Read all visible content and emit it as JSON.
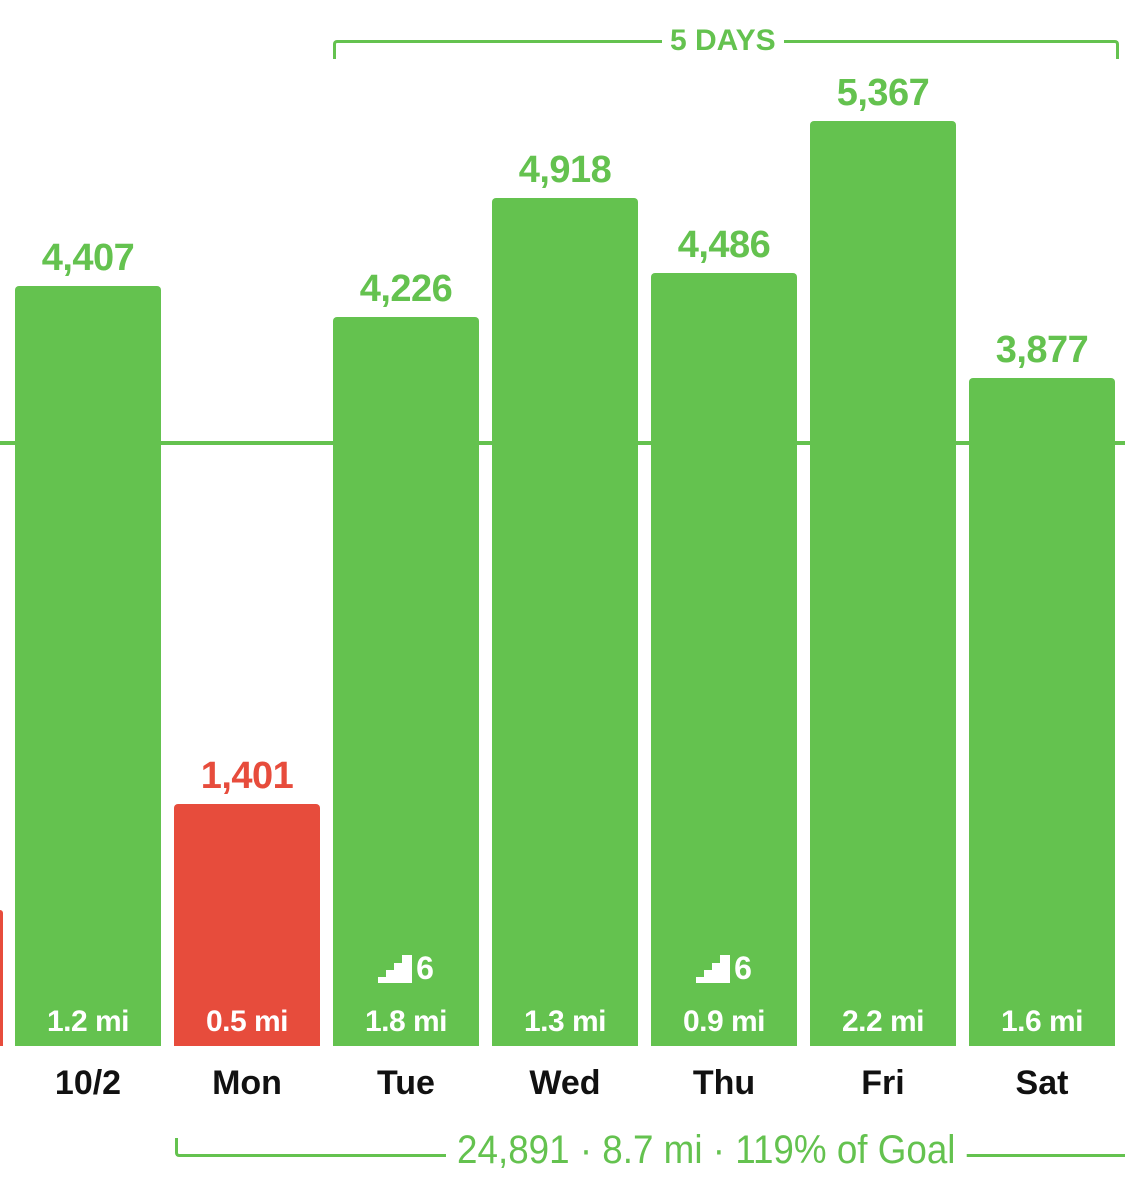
{
  "colors": {
    "goal_met": "#64c24f",
    "goal_missed": "#e74c3c",
    "day_label": "#111111"
  },
  "streak": {
    "label": "5 DAYS"
  },
  "summary": {
    "text": "24,891 · 8.7 mi · 119% of Goal"
  },
  "chart_data": {
    "type": "bar",
    "goal": 3500,
    "ylim": [
      0,
      5500
    ],
    "partial_left_bar": {
      "status": "missed"
    },
    "categories": [
      "10/2",
      "Mon",
      "Tue",
      "Wed",
      "Thu",
      "Fri",
      "Sat"
    ],
    "values": [
      4407,
      1401,
      4226,
      4918,
      4486,
      5367,
      3877
    ],
    "value_labels": [
      "4,407",
      "1,401",
      "4,226",
      "4,918",
      "4,486",
      "5,367",
      "3,877"
    ],
    "distances": [
      "1.2 mi",
      "0.5 mi",
      "1.8 mi",
      "1.3 mi",
      "0.9 mi",
      "2.2 mi",
      "1.6 mi"
    ],
    "status": [
      "met",
      "missed",
      "met",
      "met",
      "met",
      "met",
      "met"
    ],
    "floors_climbed": [
      null,
      null,
      "6",
      null,
      "6",
      null,
      null
    ]
  }
}
